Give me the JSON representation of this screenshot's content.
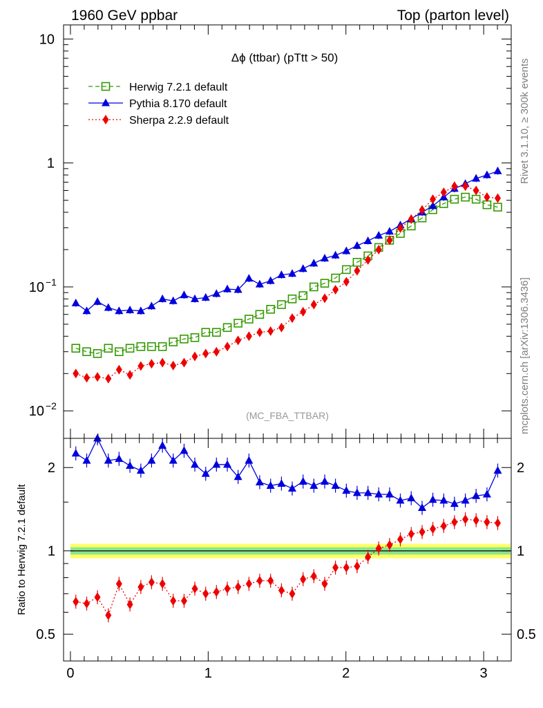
{
  "header": {
    "left": "1960 GeV ppbar",
    "right": "Top (parton level)"
  },
  "side_labels": {
    "top": "Rivet 3.1.10, ≥ 300k events",
    "bottom": "mcplots.cern.ch [arXiv:1306.3436]"
  },
  "colors": {
    "herwig": "#339900",
    "pythia": "#0000dd",
    "sherpa": "#ee0000",
    "band_outer": "#ffff66",
    "band_inner": "#66dd99"
  },
  "chart_data": [
    {
      "type": "line",
      "panel": "main",
      "title": "Δϕ (ttbar) (pTtt > 50)",
      "watermark": "(MC_FBA_TTBAR)",
      "xlabel": "",
      "ylabel": "",
      "xlim": [
        -0.05,
        3.2
      ],
      "ylim": [
        0.006,
        13
      ],
      "yscale": "log",
      "y_ticks": [
        {
          "value": 0.01,
          "base": "10",
          "exp": "−2"
        },
        {
          "value": 0.1,
          "base": "10",
          "exp": "−1"
        },
        {
          "value": 1,
          "base": "1",
          "exp": ""
        },
        {
          "value": 10,
          "base": "10",
          "exp": ""
        }
      ],
      "legend_position": "top-left",
      "x": [
        0.039,
        0.118,
        0.196,
        0.275,
        0.353,
        0.432,
        0.511,
        0.589,
        0.668,
        0.746,
        0.825,
        0.903,
        0.982,
        1.06,
        1.139,
        1.217,
        1.296,
        1.374,
        1.453,
        1.532,
        1.61,
        1.689,
        1.767,
        1.846,
        1.924,
        2.003,
        2.081,
        2.16,
        2.238,
        2.317,
        2.395,
        2.474,
        2.553,
        2.631,
        2.71,
        2.788,
        2.867,
        2.945,
        3.024,
        3.102
      ],
      "series": [
        {
          "name": "Herwig 7.2.1 default",
          "key": "herwig",
          "marker": "open-square",
          "dash": "dashed",
          "values": [
            0.032,
            0.03,
            0.029,
            0.032,
            0.03,
            0.032,
            0.033,
            0.033,
            0.033,
            0.036,
            0.038,
            0.039,
            0.043,
            0.043,
            0.047,
            0.051,
            0.055,
            0.06,
            0.066,
            0.072,
            0.08,
            0.085,
            0.1,
            0.107,
            0.118,
            0.138,
            0.158,
            0.178,
            0.208,
            0.238,
            0.27,
            0.31,
            0.36,
            0.42,
            0.47,
            0.51,
            0.53,
            0.51,
            0.46,
            0.44
          ]
        },
        {
          "name": "Pythia 8.170 default",
          "key": "pythia",
          "marker": "filled-triangle",
          "dash": "solid",
          "values": [
            0.074,
            0.064,
            0.076,
            0.068,
            0.064,
            0.065,
            0.064,
            0.07,
            0.08,
            0.077,
            0.086,
            0.08,
            0.082,
            0.088,
            0.096,
            0.095,
            0.117,
            0.105,
            0.112,
            0.125,
            0.128,
            0.14,
            0.155,
            0.17,
            0.18,
            0.195,
            0.215,
            0.235,
            0.26,
            0.28,
            0.315,
            0.355,
            0.4,
            0.45,
            0.53,
            0.62,
            0.68,
            0.75,
            0.8,
            0.86
          ]
        },
        {
          "name": "Sherpa 2.2.9 default",
          "key": "sherpa",
          "marker": "filled-diamond",
          "dash": "dotted",
          "values": [
            0.02,
            0.0185,
            0.0188,
            0.0182,
            0.0215,
            0.0195,
            0.023,
            0.024,
            0.0245,
            0.0232,
            0.0245,
            0.0275,
            0.029,
            0.03,
            0.033,
            0.037,
            0.04,
            0.043,
            0.044,
            0.047,
            0.056,
            0.063,
            0.072,
            0.081,
            0.095,
            0.11,
            0.135,
            0.165,
            0.2,
            0.238,
            0.298,
            0.352,
            0.418,
            0.51,
            0.58,
            0.65,
            0.65,
            0.6,
            0.53,
            0.52
          ]
        }
      ]
    },
    {
      "type": "line",
      "panel": "ratio",
      "ylabel": "Ratio to Herwig 7.2.1 default",
      "xlabel": "",
      "xlim": [
        -0.05,
        3.2
      ],
      "ylim": [
        0.4,
        2.55
      ],
      "yscale": "log",
      "y_ticks": [
        0.5,
        1,
        2
      ],
      "x_ticks": [
        0,
        1,
        2,
        3
      ],
      "reference_band": {
        "inner": 0.03,
        "outer": 0.06
      },
      "x": [
        0.039,
        0.118,
        0.196,
        0.275,
        0.353,
        0.432,
        0.511,
        0.589,
        0.668,
        0.746,
        0.825,
        0.903,
        0.982,
        1.06,
        1.139,
        1.217,
        1.296,
        1.374,
        1.453,
        1.532,
        1.61,
        1.689,
        1.767,
        1.846,
        1.924,
        2.003,
        2.081,
        2.16,
        2.238,
        2.317,
        2.395,
        2.474,
        2.553,
        2.631,
        2.71,
        2.788,
        2.867,
        2.945,
        3.024,
        3.102
      ],
      "series": [
        {
          "name": "Pythia 8.170 default",
          "key": "pythia",
          "marker": "filled-triangle",
          "dash": "solid",
          "values": [
            2.25,
            2.12,
            2.55,
            2.12,
            2.15,
            2.03,
            1.95,
            2.12,
            2.4,
            2.12,
            2.3,
            2.05,
            1.9,
            2.05,
            2.05,
            1.85,
            2.12,
            1.77,
            1.72,
            1.75,
            1.68,
            1.78,
            1.72,
            1.78,
            1.72,
            1.65,
            1.62,
            1.62,
            1.6,
            1.6,
            1.52,
            1.55,
            1.43,
            1.53,
            1.52,
            1.48,
            1.52,
            1.58,
            1.6,
            1.95
          ]
        },
        {
          "name": "Sherpa 2.2.9 default",
          "key": "sherpa",
          "marker": "filled-diamond",
          "dash": "dotted",
          "values": [
            0.655,
            0.645,
            0.68,
            0.585,
            0.76,
            0.64,
            0.74,
            0.77,
            0.76,
            0.66,
            0.66,
            0.73,
            0.7,
            0.71,
            0.73,
            0.74,
            0.76,
            0.78,
            0.78,
            0.72,
            0.7,
            0.79,
            0.81,
            0.76,
            0.87,
            0.87,
            0.88,
            0.95,
            1.02,
            1.05,
            1.1,
            1.15,
            1.17,
            1.2,
            1.23,
            1.27,
            1.3,
            1.29,
            1.27,
            1.26
          ]
        }
      ]
    }
  ]
}
